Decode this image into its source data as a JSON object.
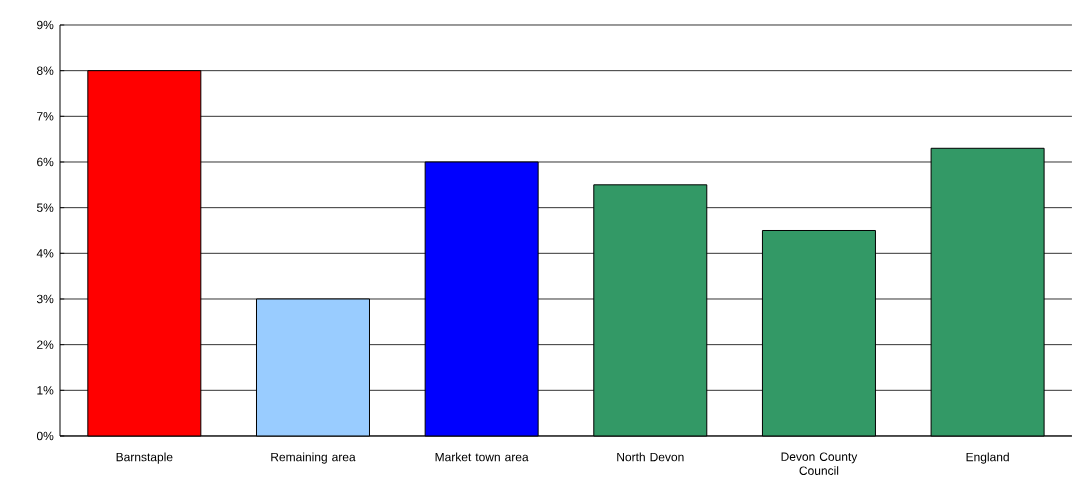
{
  "chart_data": {
    "type": "bar",
    "categories": [
      "Barnstaple",
      "Remaining area",
      "Market town area",
      "North Devon",
      "Devon County Council",
      "England"
    ],
    "values": [
      8,
      3,
      6,
      5.5,
      4.5,
      6.3
    ],
    "colors": [
      "#ff0000",
      "#99ccff",
      "#0000ff",
      "#339966",
      "#339966",
      "#339966"
    ],
    "ylim": [
      0,
      9
    ],
    "yticks": [
      {
        "value": 0,
        "label": "0%"
      },
      {
        "value": 1,
        "label": "1%"
      },
      {
        "value": 2,
        "label": "2%"
      },
      {
        "value": 3,
        "label": "3%"
      },
      {
        "value": 4,
        "label": "4%"
      },
      {
        "value": 5,
        "label": "5%"
      },
      {
        "value": 6,
        "label": "6%"
      },
      {
        "value": 7,
        "label": "7%"
      },
      {
        "value": 8,
        "label": "8%"
      },
      {
        "value": 9,
        "label": "9%"
      }
    ],
    "grid": "y"
  }
}
